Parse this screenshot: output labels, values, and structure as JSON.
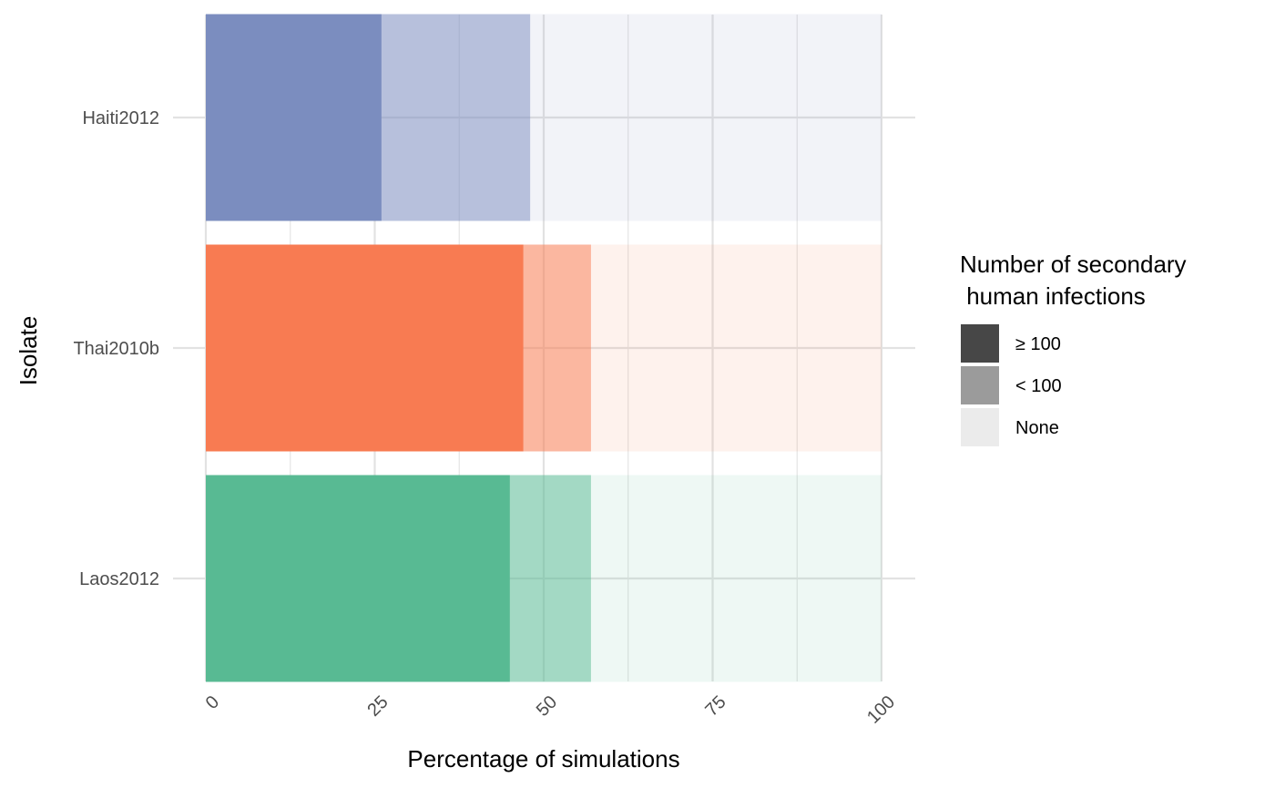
{
  "chart_data": {
    "type": "bar",
    "orientation": "horizontal",
    "stacked": true,
    "xlabel": "Percentage of simulations",
    "ylabel": "Isolate",
    "xlim": [
      0,
      100
    ],
    "x_ticks": [
      "0",
      "25",
      "50",
      "75",
      "100"
    ],
    "categories": [
      "Haiti2012",
      "Thai2010b",
      "Laos2012"
    ],
    "category_colors": {
      "Haiti2012": "#7b8dbf",
      "Thai2010b": "#f87b52",
      "Laos2012": "#58ba93"
    },
    "series": [
      {
        "name": "≥ 100",
        "values": [
          26,
          47,
          45
        ],
        "opacity": 1.0
      },
      {
        "name": "< 100",
        "values": [
          22,
          10,
          12
        ],
        "opacity": 0.55
      },
      {
        "name": "None",
        "values": [
          52,
          43,
          43
        ],
        "opacity": 0.1
      }
    ],
    "legend": {
      "title_lines": [
        "Number of secondary",
        " human infections"
      ],
      "position": "right",
      "items": [
        {
          "label": "≥ 100",
          "color": "#474747"
        },
        {
          "label": "< 100",
          "color": "#9b9b9b"
        },
        {
          "label": "None",
          "color": "#ebebeb"
        }
      ]
    },
    "grid": true,
    "grid_color": "#e2e2e2",
    "x_ticks_rotated": true
  }
}
